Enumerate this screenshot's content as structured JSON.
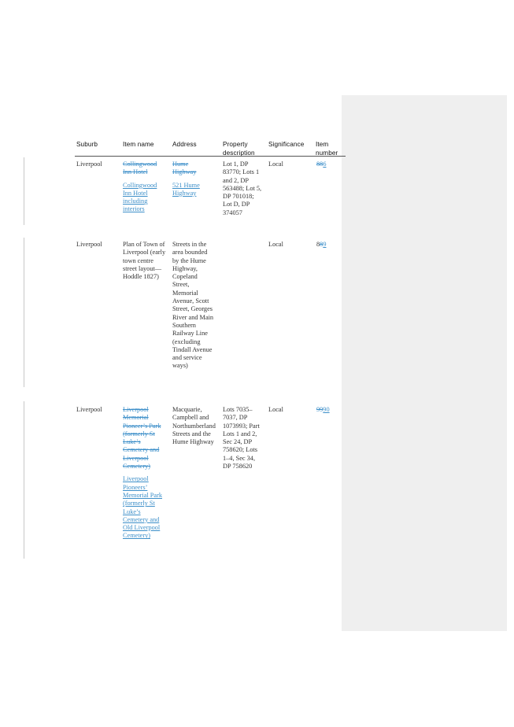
{
  "table": {
    "headers": {
      "suburb": "Suburb",
      "item_name": "Item name",
      "address": "Address",
      "property_description": "Property description",
      "significance": "Significance",
      "item_number": "Item number"
    },
    "rows": [
      {
        "suburb": "Liverpool",
        "item_name_deleted": "Collingwood Inn Hotel",
        "item_name_inserted": "Collingwood Inn Hotel including interiors",
        "address_deleted": "Hume Highway",
        "address_inserted": "521 Hume Highway",
        "property_description": "Lot 1, DP 83770; Lots 1 and 2, DP 563488; Lot 5, DP 701018; Lot D, DP 374057",
        "significance": "Local",
        "item_number_deleted": "8",
        "item_number_inserted": "6"
      },
      {
        "suburb": "Liverpool",
        "item_name": "Plan of Town of Liverpool (early town centre street layout—Hoddle 1827)",
        "address": "Streets in the area bounded by the Hume Highway, Copeland Street, Memorial Avenue, Scott Street, Georges River and Main Southern Railway Line (excluding Tindall Avenue and service ways)",
        "property_description": "",
        "significance": "Local",
        "item_number_deleted": "8",
        "item_number_inserted": "9"
      },
      {
        "suburb": "Liverpool",
        "item_name_deleted": "Liverpool Memorial Pioneer’s Park (formerly St Luke’s Cemetery and Liverpool Cemetery)",
        "item_name_inserted": "Liverpool Pioneers’ Memorial Park (formerly St Luke’s Cemetery and Old Liverpool Cemetery)",
        "address": "Macquarie, Campbell and Northumberland Streets and the Hume Highway",
        "property_description": "Lots 7035–7037, DP 1073993; Part Lots 1 and 2, Sec 24, DP 758620; Lots 1–4, Sec 34, DP 758620",
        "significance": "Local",
        "item_number_deleted": "99",
        "item_number_inserted": "90"
      }
    ]
  }
}
